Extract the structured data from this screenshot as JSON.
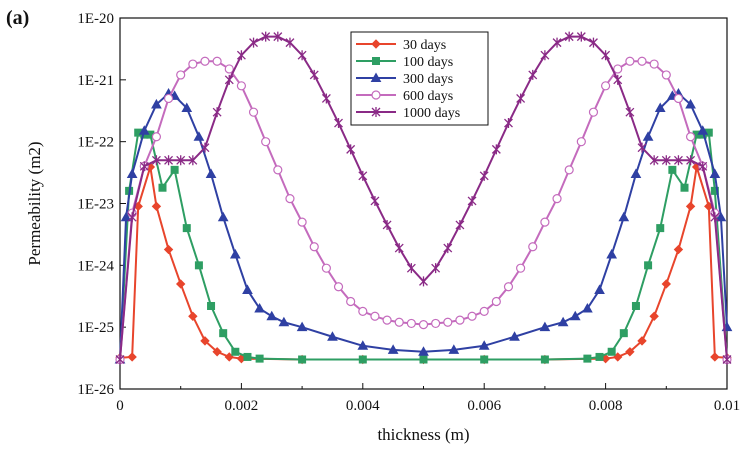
{
  "panel_label": "(a)",
  "colors": {
    "30 days": "#e8452c",
    "100 days": "#2e9e63",
    "300 days": "#2f40a3",
    "600 days": "#c46bbd",
    "1000 days": "#8a2a86"
  },
  "chart_data": {
    "type": "line",
    "xlabel": "thickness (m)",
    "ylabel": "Permeability (m2)",
    "xlim": [
      0,
      0.01
    ],
    "ylim": [
      1e-26,
      1e-20
    ],
    "yscale": "log",
    "grid": false,
    "legend_position": "top-center",
    "x_tick_values": [
      0,
      0.002,
      0.004,
      0.006,
      0.008,
      0.01
    ],
    "x_tick_labels": [
      "0",
      "0.002",
      "0.004",
      "0.006",
      "0.008",
      "0.01"
    ],
    "y_tick_values": [
      1e-26,
      1e-25,
      1e-24,
      1e-23,
      1e-22,
      1e-21,
      1e-20
    ],
    "y_tick_labels": [
      "1E-26",
      "1E-25",
      "1E-24",
      "1E-23",
      "1E-22",
      "1E-21",
      "1E-20"
    ],
    "series": [
      {
        "name": "30 days",
        "marker": "diamond",
        "x": [
          0,
          0.0002,
          0.0003,
          0.0005,
          0.0006,
          0.0008,
          0.001,
          0.0012,
          0.0014,
          0.0016,
          0.0018,
          0.002,
          0.003,
          0.004,
          0.005,
          0.006,
          0.007,
          0.008,
          0.0082,
          0.0084,
          0.0086,
          0.0088,
          0.009,
          0.0092,
          0.0094,
          0.0095,
          0.0097,
          0.0098,
          0.01
        ],
        "y": [
          3.2e-26,
          3.3e-26,
          9e-24,
          3.9e-23,
          9e-24,
          1.8e-24,
          5e-25,
          1.5e-25,
          6e-26,
          4e-26,
          3.3e-26,
          3.1e-26,
          3e-26,
          3e-26,
          3e-26,
          3e-26,
          3e-26,
          3.1e-26,
          3.3e-26,
          4e-26,
          6e-26,
          1.5e-25,
          5e-25,
          1.8e-24,
          9e-24,
          3.9e-23,
          9e-24,
          3.3e-26,
          3.2e-26
        ]
      },
      {
        "name": "100 days",
        "marker": "square",
        "x": [
          0,
          0.00015,
          0.0003,
          0.0004,
          0.0005,
          0.0007,
          0.0009,
          0.0011,
          0.0013,
          0.0015,
          0.0017,
          0.0019,
          0.0021,
          0.0023,
          0.003,
          0.004,
          0.005,
          0.006,
          0.007,
          0.0077,
          0.0079,
          0.0081,
          0.0083,
          0.0085,
          0.0087,
          0.0089,
          0.0091,
          0.0093,
          0.0095,
          0.0096,
          0.0097,
          0.0098,
          0.01
        ],
        "y": [
          3e-26,
          1.6e-23,
          1.4e-22,
          1.3e-22,
          1.3e-22,
          1.8e-23,
          3.5e-23,
          4e-24,
          1e-24,
          2.2e-25,
          8e-26,
          4e-26,
          3.3e-26,
          3.1e-26,
          3e-26,
          3e-26,
          3e-26,
          3e-26,
          3e-26,
          3.1e-26,
          3.3e-26,
          4e-26,
          8e-26,
          2.2e-25,
          1e-24,
          4e-24,
          3.5e-23,
          1.8e-23,
          1.3e-22,
          1.3e-22,
          1.4e-22,
          1.6e-23,
          3e-26
        ]
      },
      {
        "name": "300 days",
        "marker": "triangle",
        "x": [
          0,
          0.0001,
          0.0002,
          0.0004,
          0.0006,
          0.0008,
          0.0009,
          0.0011,
          0.0013,
          0.0015,
          0.0017,
          0.0019,
          0.0021,
          0.0023,
          0.0025,
          0.0027,
          0.003,
          0.0035,
          0.004,
          0.0045,
          0.005,
          0.0055,
          0.006,
          0.0065,
          0.007,
          0.0073,
          0.0075,
          0.0077,
          0.0079,
          0.0081,
          0.0083,
          0.0085,
          0.0087,
          0.0089,
          0.0091,
          0.0092,
          0.0094,
          0.0096,
          0.0098,
          0.0099,
          0.01
        ],
        "y": [
          3e-26,
          6e-24,
          3e-23,
          1.5e-22,
          4e-22,
          6e-22,
          5.5e-22,
          3.5e-22,
          1.2e-22,
          3e-23,
          6e-24,
          1.5e-24,
          4e-25,
          2e-25,
          1.5e-25,
          1.2e-25,
          1e-25,
          7e-26,
          5e-26,
          4.3e-26,
          4e-26,
          4.3e-26,
          5e-26,
          7e-26,
          1e-25,
          1.2e-25,
          1.5e-25,
          2e-25,
          4e-25,
          1.5e-24,
          6e-24,
          3e-23,
          1.2e-22,
          3.5e-22,
          5.5e-22,
          6e-22,
          4e-22,
          1.5e-22,
          3e-23,
          6e-24,
          1e-25
        ]
      },
      {
        "name": "600 days",
        "marker": "circle",
        "x": [
          0,
          0.0002,
          0.0004,
          0.0006,
          0.0008,
          0.001,
          0.0012,
          0.0014,
          0.0016,
          0.0018,
          0.002,
          0.0022,
          0.0024,
          0.0026,
          0.0028,
          0.003,
          0.0032,
          0.0034,
          0.0036,
          0.0038,
          0.004,
          0.0042,
          0.0044,
          0.0046,
          0.0048,
          0.005,
          0.0052,
          0.0054,
          0.0056,
          0.0058,
          0.006,
          0.0062,
          0.0064,
          0.0066,
          0.0068,
          0.007,
          0.0072,
          0.0074,
          0.0076,
          0.0078,
          0.008,
          0.0082,
          0.0084,
          0.0086,
          0.0088,
          0.009,
          0.0092,
          0.0094,
          0.0096,
          0.0098,
          0.01
        ],
        "y": [
          3e-26,
          7e-24,
          4e-23,
          1.2e-22,
          5e-22,
          1.2e-21,
          1.8e-21,
          2e-21,
          2e-21,
          1.5e-21,
          8e-22,
          3e-22,
          1e-22,
          3.5e-23,
          1.2e-23,
          5e-24,
          2e-24,
          9e-25,
          4.5e-25,
          2.6e-25,
          1.8e-25,
          1.5e-25,
          1.3e-25,
          1.2e-25,
          1.15e-25,
          1.1e-25,
          1.15e-25,
          1.2e-25,
          1.3e-25,
          1.5e-25,
          1.8e-25,
          2.6e-25,
          4.5e-25,
          9e-25,
          2e-24,
          5e-24,
          1.2e-23,
          3.5e-23,
          1e-22,
          3e-22,
          8e-22,
          1.5e-21,
          2e-21,
          2e-21,
          1.8e-21,
          1.2e-21,
          5e-22,
          1.2e-22,
          4e-23,
          7e-24,
          3e-26
        ]
      },
      {
        "name": "1000 days",
        "marker": "star",
        "x": [
          0,
          0.0002,
          0.0004,
          0.0006,
          0.0008,
          0.001,
          0.0012,
          0.0014,
          0.0016,
          0.0018,
          0.002,
          0.0022,
          0.0024,
          0.0026,
          0.0028,
          0.003,
          0.0032,
          0.0034,
          0.0036,
          0.0038,
          0.004,
          0.0042,
          0.0044,
          0.0046,
          0.0048,
          0.005,
          0.0052,
          0.0054,
          0.0056,
          0.0058,
          0.006,
          0.0062,
          0.0064,
          0.0066,
          0.0068,
          0.007,
          0.0072,
          0.0074,
          0.0076,
          0.0078,
          0.008,
          0.0082,
          0.0084,
          0.0086,
          0.0088,
          0.009,
          0.0092,
          0.0094,
          0.0096,
          0.0098,
          0.01
        ],
        "y": [
          3e-26,
          6e-24,
          4e-23,
          5e-23,
          5e-23,
          5e-23,
          5e-23,
          8e-23,
          3e-22,
          1e-21,
          2.5e-21,
          4e-21,
          5e-21,
          5e-21,
          4e-21,
          2.5e-21,
          1.2e-21,
          5e-22,
          2e-22,
          7.5e-23,
          2.8e-23,
          1.1e-23,
          4.5e-24,
          1.9e-24,
          9e-25,
          5.5e-25,
          9e-25,
          1.9e-24,
          4.5e-24,
          1.1e-23,
          2.8e-23,
          7.5e-23,
          2e-22,
          5e-22,
          1.2e-21,
          2.5e-21,
          4e-21,
          5e-21,
          5e-21,
          4e-21,
          2.5e-21,
          1e-21,
          3e-22,
          8e-23,
          5e-23,
          5e-23,
          5e-23,
          5e-23,
          4e-23,
          6e-24,
          3e-26
        ]
      }
    ]
  }
}
